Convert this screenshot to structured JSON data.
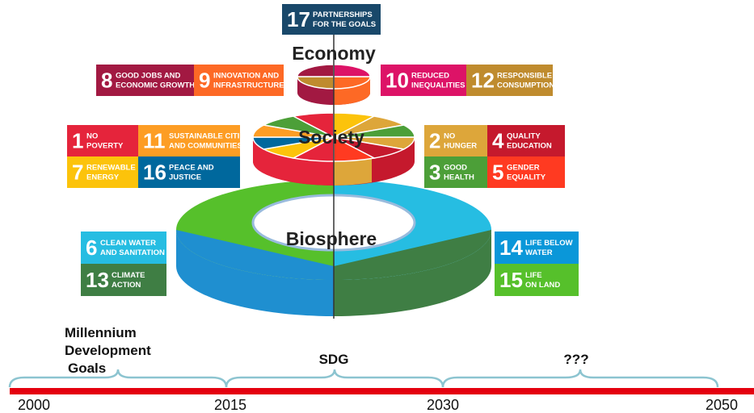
{
  "layers": {
    "economy": "Economy",
    "society": "Society",
    "biosphere": "Biosphere"
  },
  "goals": [
    {
      "number": "17",
      "label": [
        "PARTNERSHIPS",
        "FOR THE GOALS"
      ]
    },
    {
      "number": "8",
      "label": [
        "GOOD JOBS AND",
        "ECONOMIC GROWTH"
      ]
    },
    {
      "number": "9",
      "label": [
        "INNOVATION AND",
        "INFRASTRUCTURE"
      ]
    },
    {
      "number": "10",
      "label": [
        "REDUCED",
        "INEQUALITIES"
      ]
    },
    {
      "number": "12",
      "label": [
        "RESPONSIBLE",
        "CONSUMPTION"
      ]
    },
    {
      "number": "1",
      "label": [
        "NO",
        "POVERTY"
      ]
    },
    {
      "number": "11",
      "label": [
        "SUSTAINABLE CITIES",
        "AND COMMUNITIES"
      ]
    },
    {
      "number": "7",
      "label": [
        "RENEWABLE",
        "ENERGY"
      ]
    },
    {
      "number": "16",
      "label": [
        "PEACE AND",
        "JUSTICE"
      ]
    },
    {
      "number": "2",
      "label": [
        "NO",
        "HUNGER"
      ]
    },
    {
      "number": "4",
      "label": [
        "QUALITY",
        "EDUCATION"
      ]
    },
    {
      "number": "3",
      "label": [
        "GOOD",
        "HEALTH"
      ]
    },
    {
      "number": "5",
      "label": [
        "GENDER",
        "EQUALITY"
      ]
    },
    {
      "number": "6",
      "label": [
        "CLEAN WATER",
        "AND SANITATION"
      ]
    },
    {
      "number": "13",
      "label": [
        "CLIMATE",
        "ACTION"
      ]
    },
    {
      "number": "14",
      "label": [
        "LIFE BELOW",
        "WATER"
      ]
    },
    {
      "number": "15",
      "label": [
        "LIFE",
        "ON LAND"
      ]
    }
  ],
  "timeline": {
    "eras": [
      [
        "Millennium",
        "Development",
        "Goals"
      ],
      [
        "SDG"
      ],
      [
        "???"
      ]
    ],
    "years": [
      "2000",
      "2015",
      "2030",
      "2050"
    ]
  }
}
